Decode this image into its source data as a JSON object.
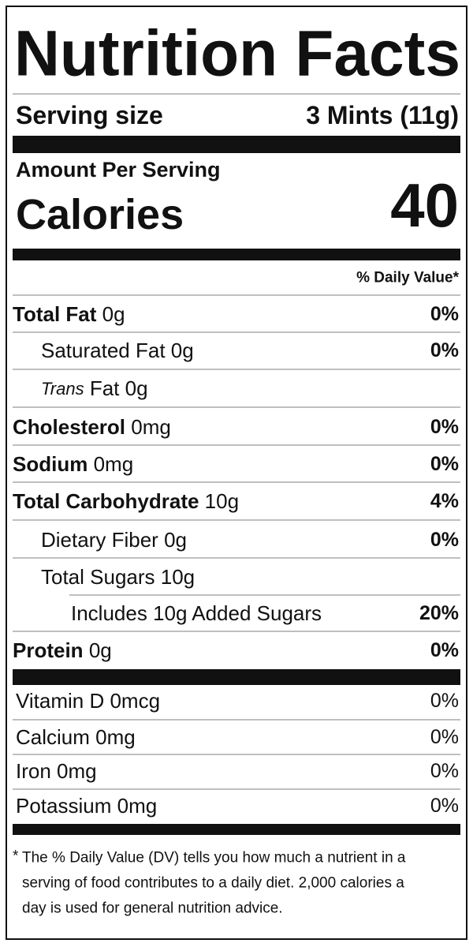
{
  "title": "Nutrition Facts",
  "serving": {
    "label": "Serving size",
    "value": "3 Mints (11g)"
  },
  "amount_per_serving": "Amount Per Serving",
  "calories": {
    "label": "Calories",
    "value": 40
  },
  "daily_value_header": "% Daily Value*",
  "nutrients": [
    {
      "name": "Total Fat",
      "amount": "0g",
      "dv": "0%"
    },
    {
      "name": "Saturated Fat",
      "amount": "0g",
      "dv": "0%"
    },
    {
      "name": "Trans",
      "name_suffix": "Fat",
      "amount": "0g"
    },
    {
      "name": "Cholesterol",
      "amount": "0mg",
      "dv": "0%"
    },
    {
      "name": "Sodium",
      "amount": "0mg",
      "dv": "0%"
    },
    {
      "name": "Total Carbohydrate",
      "amount": "10g",
      "dv": "4%"
    },
    {
      "name": "Dietary Fiber",
      "amount": "0g",
      "dv": "0%"
    },
    {
      "name": "Total Sugars",
      "amount": "10g"
    },
    {
      "name": "Includes 10g Added Sugars",
      "dv": "20%"
    },
    {
      "name": "Protein",
      "amount": "0g",
      "dv": "0%"
    }
  ],
  "vitamins": [
    {
      "name": "Vitamin D",
      "amount": "0mcg",
      "dv": "0%"
    },
    {
      "name": "Calcium",
      "amount": "0mg",
      "dv": "0%"
    },
    {
      "name": "Iron",
      "amount": "0mg",
      "dv": "0%"
    },
    {
      "name": "Potassium",
      "amount": "0mg",
      "dv": "0%"
    }
  ],
  "footnote": {
    "marker": "*",
    "lines": [
      "The % Daily Value (DV) tells you how much a nutrient in a",
      "serving of food contributes to a daily diet. 2,000 calories a",
      "day is used for general nutrition advice."
    ]
  }
}
